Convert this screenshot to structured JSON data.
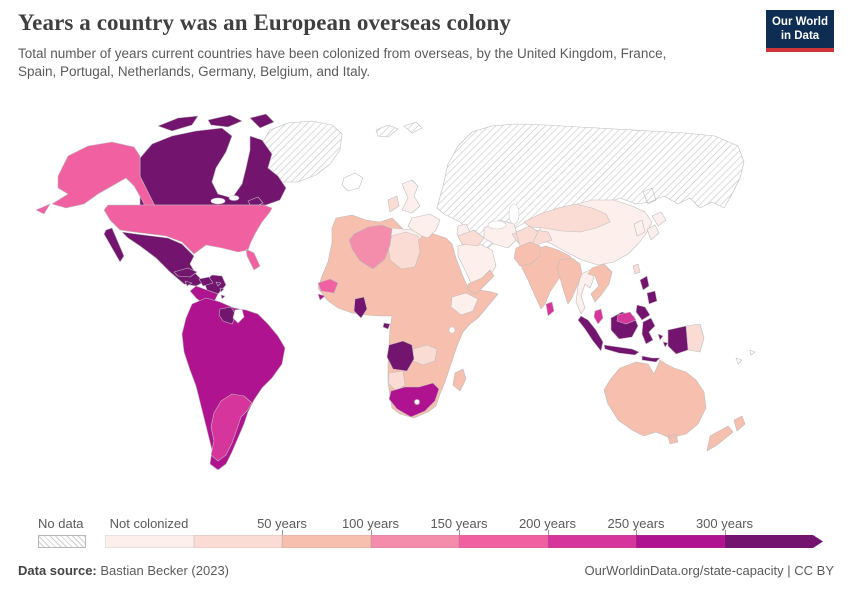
{
  "header": {
    "title": "Years a country was an European overseas colony",
    "subtitle_line1": "Total number of years current countries have been colonized from overseas, by the United Kingdom, France,",
    "subtitle_line2": "Spain, Portugal, Netherlands, Germany, Belgium, and Italy.",
    "logo": {
      "line1": "Our World",
      "line2": "in Data",
      "bg": "#0d2e52",
      "stripe": "#cf3438"
    }
  },
  "legend": {
    "no_data_label": "No data",
    "not_colonized_label": "Not colonized",
    "tick_labels": [
      "50 years",
      "100 years",
      "150 years",
      "200 years",
      "250 years",
      "300 years"
    ],
    "buckets": [
      "not_colonized",
      "y0_50",
      "y50_100",
      "y100_150",
      "y150_200",
      "y200_250",
      "y250_300",
      "y300_plus"
    ]
  },
  "palette": {
    "no_data_pattern": "#cdcdcd",
    "white": "#ffffff",
    "not_colonized": "#fdf0ec",
    "y0_50": "#fbdcd4",
    "y50_100": "#f7bfae",
    "y100_150": "#f48cab",
    "y150_200": "#f161a2",
    "y200_250": "#d6359c",
    "y250_300": "#b01390",
    "y300_plus": "#73156f"
  },
  "map": {
    "regions": {
      "greenland": "no_data",
      "svalbard": "no_data",
      "europe_russia": "no_data",
      "western_sahara": "no_data",
      "iceland": "white",
      "suriname": "white",
      "pacific_islands": "white",
      "uk": "not_colonized",
      "france": "not_colonized",
      "iberia": "not_colonized",
      "italy": "not_colonized",
      "china": "not_colonized",
      "korea": "not_colonized",
      "japan": "not_colonized",
      "thailand": "not_colonized",
      "arabia": "not_colonized",
      "iran": "not_colonized",
      "ethiopia": "not_colonized",
      "ireland": "y0_50",
      "turkey": "y0_50",
      "central_asia": "y0_50",
      "iraq_syria": "y0_50",
      "afghanistan": "y0_50",
      "libya": "y0_50",
      "zambia": "y0_50",
      "namibia": "y0_50",
      "png": "y0_50",
      "taiwan": "y0_50",
      "africa_base": "y50_100",
      "madagascar": "y50_100",
      "india": "y50_100",
      "pakistan": "y50_100",
      "bangladesh_myanmar": "y50_100",
      "indochina": "y50_100",
      "australia": "y50_100",
      "new_zealand": "y50_100",
      "yemen_oman": "y50_100",
      "algeria": "y100_150",
      "alaska": "y150_200",
      "usa": "y150_200",
      "senegal": "y150_200",
      "argentina": "y200_250",
      "sri_lanka": "y200_250",
      "malaysia_peninsula": "y200_250",
      "malaysia_borneo": "y200_250",
      "central_america": "y250_300",
      "south_america": "y250_300",
      "south_africa": "y250_300",
      "guinea_bissau": "y250_300",
      "canada": "y300_plus",
      "mexico": "y300_plus",
      "cuba": "y300_plus",
      "hispaniola": "y300_plus",
      "jamaica": "y300_plus",
      "caribbean_islands": "y300_plus",
      "guyana": "y300_plus",
      "ghana": "y300_plus",
      "angola": "y300_plus",
      "equatorial_guinea": "y300_plus",
      "indonesia": "y300_plus",
      "philippines": "y300_plus"
    }
  },
  "footer": {
    "source_label": "Data source:",
    "source_value": "Bastian Becker (2023)",
    "right_text": "OurWorldinData.org/state-capacity | CC BY"
  },
  "chart_data": {
    "type": "choropleth",
    "title": "Years a country was an European overseas colony",
    "subtitle": "Total number of years current countries have been colonized from overseas, by the United Kingdom, France, Spain, Portugal, Netherlands, Germany, Belgium, and Italy.",
    "unit": "years",
    "legend_position": "bottom",
    "legend_bins": [
      {
        "label": "No data",
        "style": "hatched"
      },
      {
        "label": "Not colonized",
        "color": "#fdf0ec"
      },
      {
        "label": "0-50 years",
        "color": "#fbdcd4"
      },
      {
        "label": "50-100 years",
        "color": "#f7bfae"
      },
      {
        "label": "100-150 years",
        "color": "#f48cab"
      },
      {
        "label": "150-200 years",
        "color": "#f161a2"
      },
      {
        "label": "200-250 years",
        "color": "#d6359c"
      },
      {
        "label": "250-300 years",
        "color": "#b01390"
      },
      {
        "label": "300+ years",
        "color": "#73156f"
      }
    ],
    "regions": {
      "Canada": "300+ years",
      "United States (incl. Alaska)": "150-200 years",
      "Greenland": "No data",
      "Mexico": "300+ years",
      "Central America": "250-300 years",
      "Cuba": "300+ years",
      "Haiti & Dominican Republic": "300+ years",
      "Jamaica": "300+ years",
      "Lesser Antilles": "300+ years",
      "Colombia": "250-300 years",
      "Venezuela": "250-300 years",
      "Ecuador": "250-300 years",
      "Peru": "250-300 years",
      "Bolivia": "250-300 years",
      "Brazil": "250-300 years",
      "Paraguay": "250-300 years",
      "Chile": "250-300 years",
      "Guyana": "300+ years",
      "Argentina": "200-250 years",
      "Uruguay": "200-250 years",
      "United Kingdom": "Not colonized",
      "Ireland": "0-50 years",
      "France": "Not colonized",
      "Spain": "Not colonized",
      "Portugal": "Not colonized",
      "Italy": "Not colonized",
      "Scandinavia": "No data",
      "Russia": "No data",
      "Eastern Europe": "No data",
      "Turkey": "0-50 years",
      "Kazakhstan & Central Asia": "0-50 years",
      "China": "Not colonized",
      "Mongolia": "Not colonized",
      "Japan": "Not colonized",
      "South Korea": "Not colonized",
      "Iran": "Not colonized",
      "Saudi Arabia": "Not colonized",
      "Iraq & Syria": "0-50 years",
      "Afghanistan": "0-50 years",
      "Yemen & Oman": "50-100 years",
      "Pakistan": "50-100 years",
      "India": "50-100 years",
      "Sri Lanka": "200-250 years",
      "Bangladesh & Myanmar": "50-100 years",
      "Thailand": "Not colonized",
      "Vietnam, Laos & Cambodia": "50-100 years",
      "Malaysia": "200-250 years",
      "Indonesia": "300+ years",
      "Philippines": "300+ years",
      "Taiwan": "0-50 years",
      "Papua New Guinea": "0-50 years",
      "Australia": "50-100 years",
      "New Zealand": "50-100 years",
      "Morocco": "50-100 years",
      "Algeria": "100-150 years",
      "Libya": "0-50 years",
      "Egypt": "50-100 years",
      "Western Sahara": "No data",
      "Senegal": "150-200 years",
      "Guinea-Bissau": "250-300 years",
      "Ghana": "300+ years",
      "Nigeria": "50-100 years",
      "Sahel (Mali, Niger, Chad, Sudan)": "50-100 years",
      "Ethiopia": "Not colonized",
      "Somalia": "50-100 years",
      "Kenya & Tanzania": "50-100 years",
      "DR Congo": "50-100 years",
      "Equatorial Guinea": "300+ years",
      "Angola": "300+ years",
      "Zambia": "0-50 years",
      "Namibia": "0-50 years",
      "Botswana": "50-100 years",
      "South Africa": "250-300 years",
      "Madagascar": "50-100 years"
    }
  }
}
